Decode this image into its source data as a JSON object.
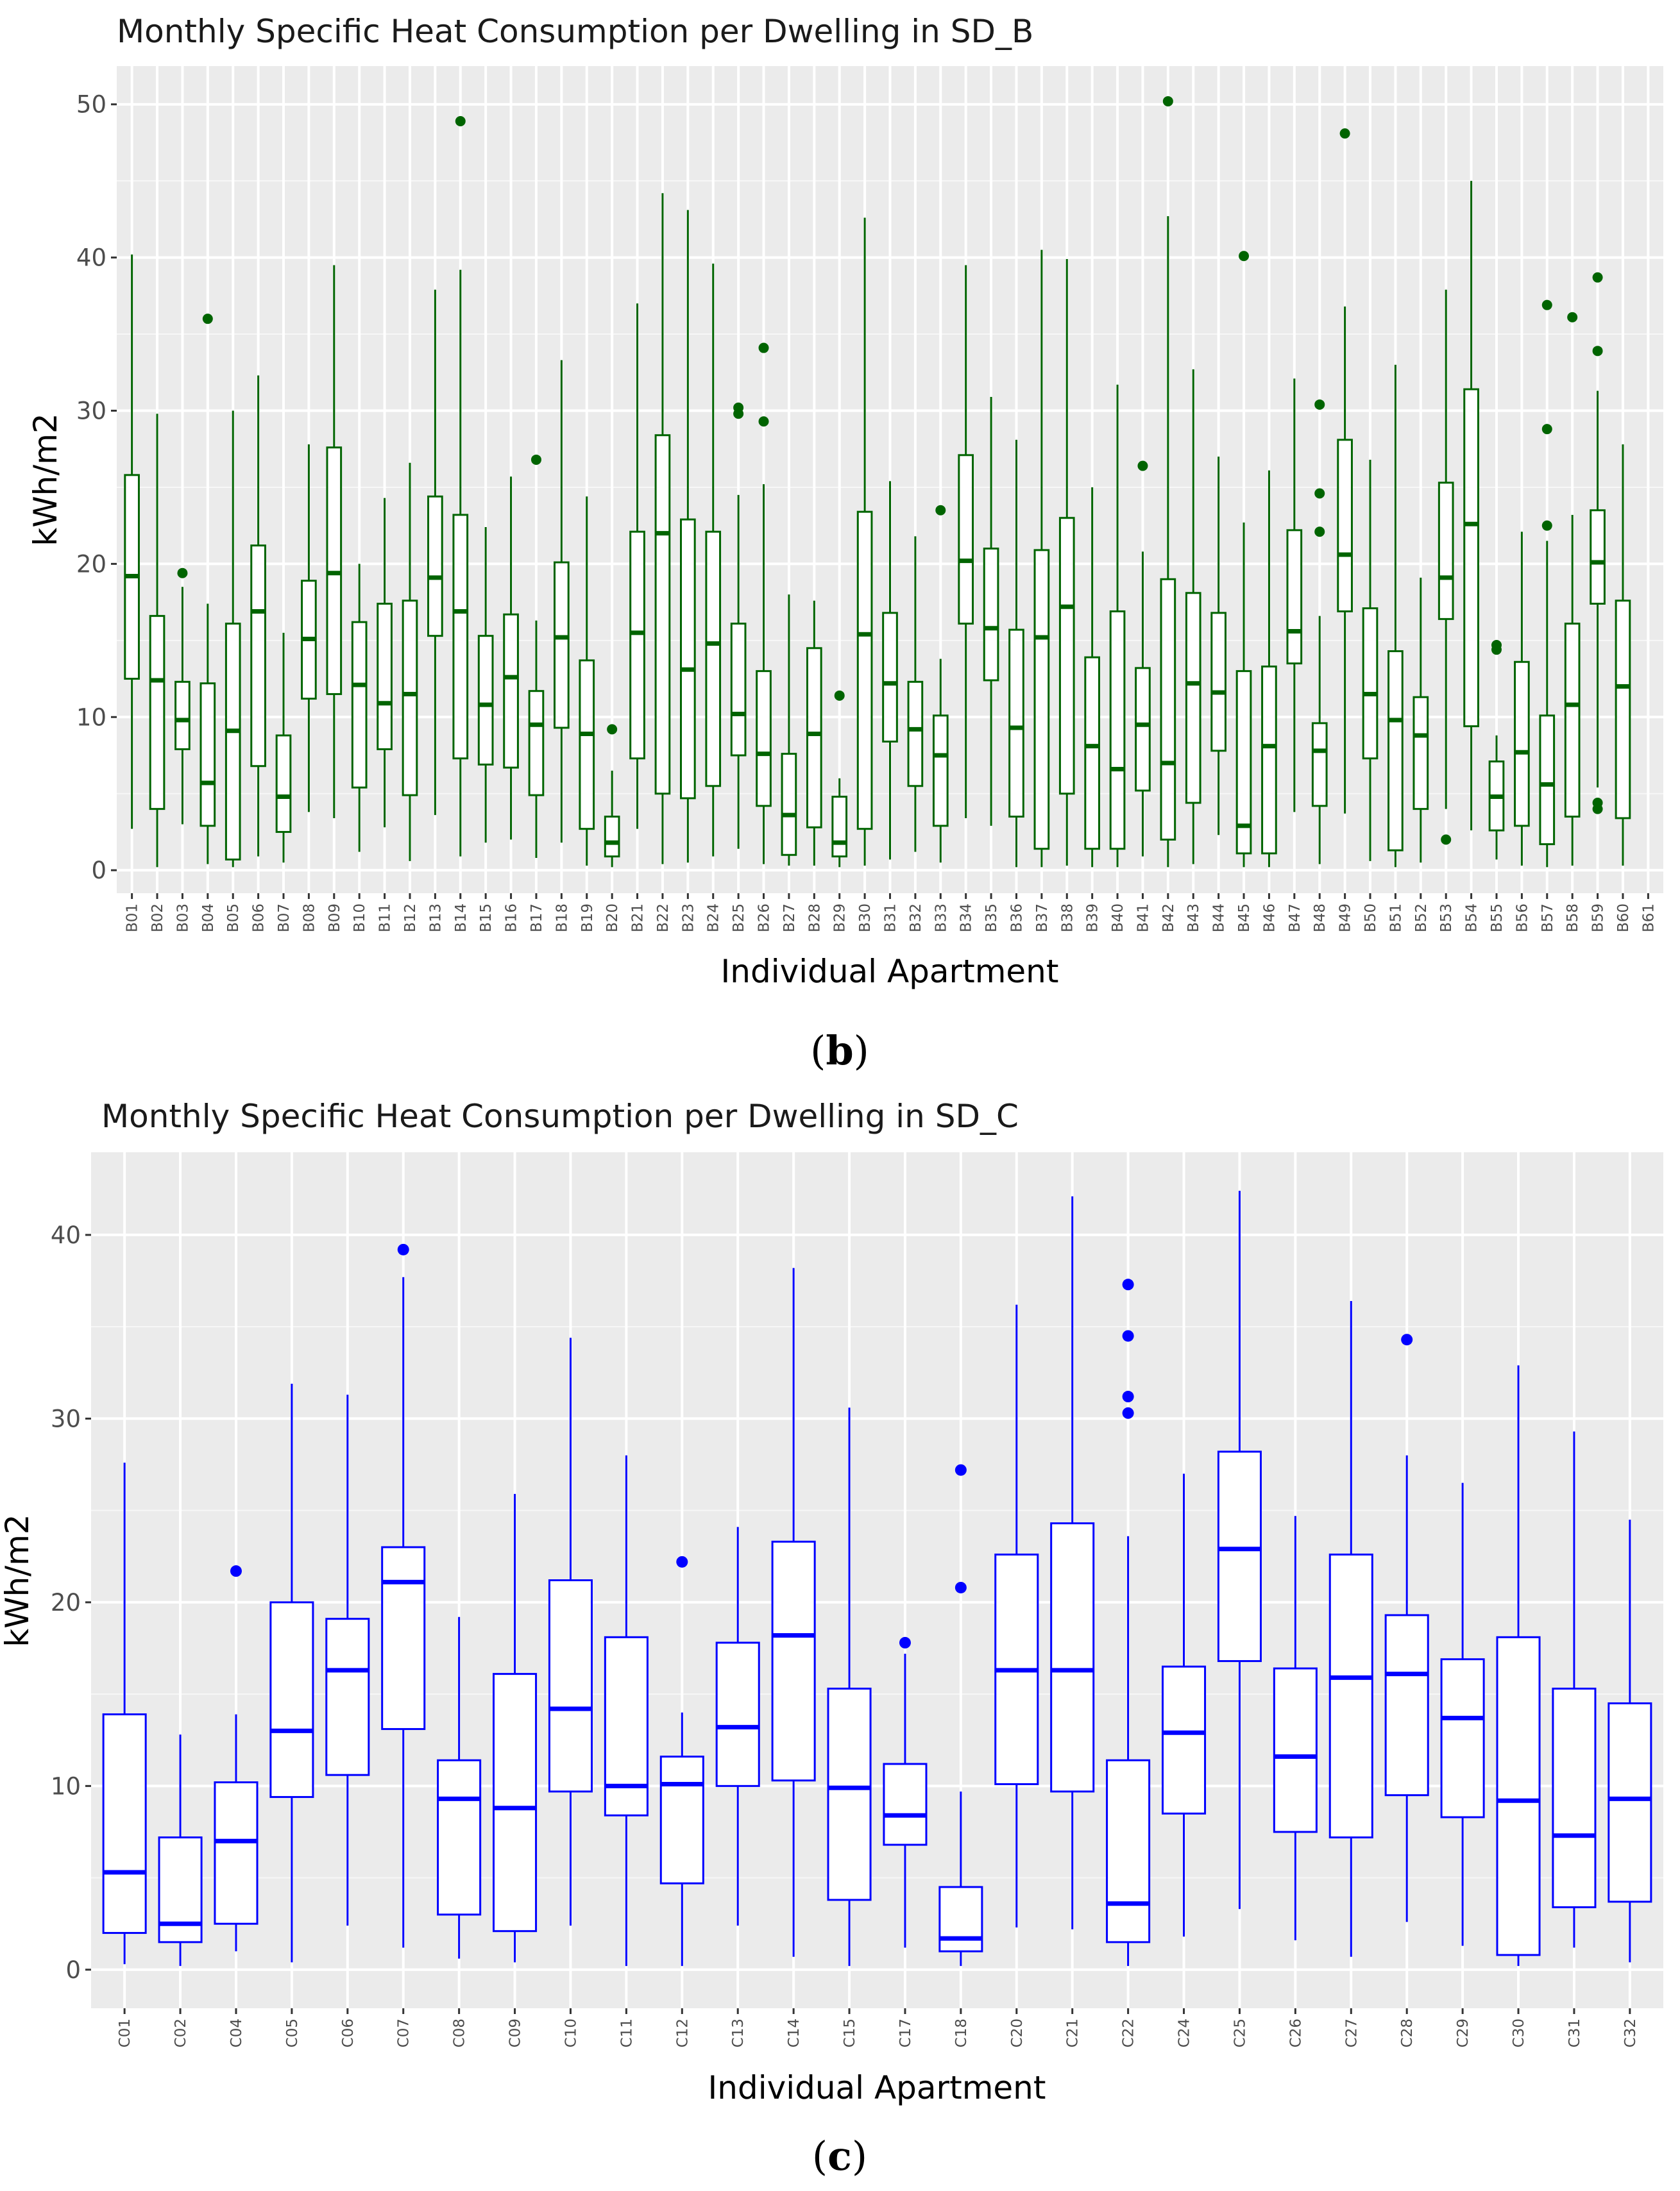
{
  "panel_labels": [
    {
      "open": "(",
      "letter": "b",
      "close": ")"
    },
    {
      "open": "(",
      "letter": "c",
      "close": ")"
    }
  ],
  "chart_data": [
    {
      "type": "boxplot",
      "title": "Monthly Specific Heat Consumption per Dwelling in SD_B",
      "xlabel": "Individual Apartment",
      "ylabel": "kWh/m2",
      "ylim": [
        -1.5,
        52.5
      ],
      "yticks": [
        0,
        10,
        20,
        30,
        40,
        50
      ],
      "color": "#006400",
      "grid": true,
      "boxes": [
        {
          "label": "B01",
          "min": 2.7,
          "q1": 12.5,
          "median": 19.2,
          "q3": 25.8,
          "max": 40.2,
          "outliers": []
        },
        {
          "label": "B02",
          "min": 0.2,
          "q1": 4.0,
          "median": 12.4,
          "q3": 16.6,
          "max": 29.8,
          "outliers": []
        },
        {
          "label": "B03",
          "min": 3.0,
          "q1": 7.9,
          "median": 9.8,
          "q3": 12.3,
          "max": 18.5,
          "outliers": [
            19.4
          ]
        },
        {
          "label": "B04",
          "min": 0.4,
          "q1": 2.9,
          "median": 5.7,
          "q3": 12.2,
          "max": 17.4,
          "outliers": [
            36.0
          ]
        },
        {
          "label": "B05",
          "min": 0.2,
          "q1": 0.7,
          "median": 9.1,
          "q3": 16.1,
          "max": 30.0,
          "outliers": []
        },
        {
          "label": "B06",
          "min": 0.9,
          "q1": 6.8,
          "median": 16.9,
          "q3": 21.2,
          "max": 32.3,
          "outliers": []
        },
        {
          "label": "B07",
          "min": 0.5,
          "q1": 2.5,
          "median": 4.8,
          "q3": 8.8,
          "max": 15.5,
          "outliers": []
        },
        {
          "label": "B08",
          "min": 3.8,
          "q1": 11.2,
          "median": 15.1,
          "q3": 18.9,
          "max": 27.8,
          "outliers": []
        },
        {
          "label": "B09",
          "min": 3.4,
          "q1": 11.5,
          "median": 19.4,
          "q3": 27.6,
          "max": 39.5,
          "outliers": []
        },
        {
          "label": "B10",
          "min": 1.2,
          "q1": 5.4,
          "median": 12.1,
          "q3": 16.2,
          "max": 20.0,
          "outliers": []
        },
        {
          "label": "B11",
          "min": 2.8,
          "q1": 7.9,
          "median": 10.9,
          "q3": 17.4,
          "max": 24.3,
          "outliers": []
        },
        {
          "label": "B12",
          "min": 0.6,
          "q1": 4.9,
          "median": 11.5,
          "q3": 17.6,
          "max": 26.6,
          "outliers": []
        },
        {
          "label": "B13",
          "min": 3.6,
          "q1": 15.3,
          "median": 19.1,
          "q3": 24.4,
          "max": 37.9,
          "outliers": []
        },
        {
          "label": "B14",
          "min": 0.9,
          "q1": 7.3,
          "median": 16.9,
          "q3": 23.2,
          "max": 39.2,
          "outliers": [
            48.9
          ]
        },
        {
          "label": "B15",
          "min": 1.8,
          "q1": 6.9,
          "median": 10.8,
          "q3": 15.3,
          "max": 22.4,
          "outliers": []
        },
        {
          "label": "B16",
          "min": 2.0,
          "q1": 6.7,
          "median": 12.6,
          "q3": 16.7,
          "max": 25.7,
          "outliers": []
        },
        {
          "label": "B17",
          "min": 0.8,
          "q1": 4.9,
          "median": 9.5,
          "q3": 11.7,
          "max": 16.3,
          "outliers": [
            26.8
          ]
        },
        {
          "label": "B18",
          "min": 1.8,
          "q1": 9.3,
          "median": 15.2,
          "q3": 20.1,
          "max": 33.3,
          "outliers": []
        },
        {
          "label": "B19",
          "min": 0.3,
          "q1": 2.7,
          "median": 8.9,
          "q3": 13.7,
          "max": 24.4,
          "outliers": []
        },
        {
          "label": "B20",
          "min": 0.2,
          "q1": 0.9,
          "median": 1.8,
          "q3": 3.5,
          "max": 6.5,
          "outliers": [
            9.2
          ]
        },
        {
          "label": "B21",
          "min": 2.7,
          "q1": 7.3,
          "median": 15.5,
          "q3": 22.1,
          "max": 37.0,
          "outliers": []
        },
        {
          "label": "B22",
          "min": 0.4,
          "q1": 5.0,
          "median": 22.0,
          "q3": 28.4,
          "max": 44.2,
          "outliers": []
        },
        {
          "label": "B23",
          "min": 0.5,
          "q1": 4.7,
          "median": 13.1,
          "q3": 22.9,
          "max": 43.1,
          "outliers": []
        },
        {
          "label": "B24",
          "min": 0.9,
          "q1": 5.5,
          "median": 14.8,
          "q3": 22.1,
          "max": 39.6,
          "outliers": []
        },
        {
          "label": "B25",
          "min": 1.4,
          "q1": 7.5,
          "median": 10.2,
          "q3": 16.1,
          "max": 24.5,
          "outliers": [
            29.8,
            30.2
          ]
        },
        {
          "label": "B26",
          "min": 0.4,
          "q1": 4.2,
          "median": 7.6,
          "q3": 13.0,
          "max": 25.2,
          "outliers": [
            29.3,
            34.1
          ]
        },
        {
          "label": "B27",
          "min": 0.3,
          "q1": 1.0,
          "median": 3.6,
          "q3": 7.6,
          "max": 18.0,
          "outliers": []
        },
        {
          "label": "B28",
          "min": 0.3,
          "q1": 2.8,
          "median": 8.9,
          "q3": 14.5,
          "max": 17.6,
          "outliers": []
        },
        {
          "label": "B29",
          "min": 0.2,
          "q1": 0.9,
          "median": 1.8,
          "q3": 4.8,
          "max": 6.0,
          "outliers": [
            11.4
          ]
        },
        {
          "label": "B30",
          "min": 0.3,
          "q1": 2.7,
          "median": 15.4,
          "q3": 23.4,
          "max": 42.6,
          "outliers": []
        },
        {
          "label": "B31",
          "min": 0.7,
          "q1": 8.4,
          "median": 12.2,
          "q3": 16.8,
          "max": 25.4,
          "outliers": []
        },
        {
          "label": "B32",
          "min": 1.2,
          "q1": 5.5,
          "median": 9.2,
          "q3": 12.3,
          "max": 21.8,
          "outliers": []
        },
        {
          "label": "B33",
          "min": 0.5,
          "q1": 2.9,
          "median": 7.5,
          "q3": 10.1,
          "max": 13.8,
          "outliers": [
            23.5
          ]
        },
        {
          "label": "B34",
          "min": 3.4,
          "q1": 16.1,
          "median": 20.2,
          "q3": 27.1,
          "max": 39.5,
          "outliers": []
        },
        {
          "label": "B35",
          "min": 2.9,
          "q1": 12.4,
          "median": 15.8,
          "q3": 21.0,
          "max": 30.9,
          "outliers": []
        },
        {
          "label": "B36",
          "min": 0.2,
          "q1": 3.5,
          "median": 9.3,
          "q3": 15.7,
          "max": 28.1,
          "outliers": []
        },
        {
          "label": "B37",
          "min": 0.2,
          "q1": 1.4,
          "median": 15.2,
          "q3": 20.9,
          "max": 40.5,
          "outliers": []
        },
        {
          "label": "B38",
          "min": 0.3,
          "q1": 5.0,
          "median": 17.2,
          "q3": 23.0,
          "max": 39.9,
          "outliers": []
        },
        {
          "label": "B39",
          "min": 0.2,
          "q1": 1.4,
          "median": 8.1,
          "q3": 13.9,
          "max": 25.0,
          "outliers": []
        },
        {
          "label": "B40",
          "min": 0.2,
          "q1": 1.4,
          "median": 6.6,
          "q3": 16.9,
          "max": 31.7,
          "outliers": []
        },
        {
          "label": "B41",
          "min": 0.9,
          "q1": 5.2,
          "median": 9.5,
          "q3": 13.2,
          "max": 20.8,
          "outliers": [
            26.4
          ]
        },
        {
          "label": "B42",
          "min": 0.2,
          "q1": 2.0,
          "median": 7.0,
          "q3": 19.0,
          "max": 42.7,
          "outliers": [
            50.2
          ]
        },
        {
          "label": "B43",
          "min": 0.4,
          "q1": 4.4,
          "median": 12.2,
          "q3": 18.1,
          "max": 32.7,
          "outliers": []
        },
        {
          "label": "B44",
          "min": 2.3,
          "q1": 7.8,
          "median": 11.6,
          "q3": 16.8,
          "max": 27.0,
          "outliers": []
        },
        {
          "label": "B45",
          "min": 0.2,
          "q1": 1.1,
          "median": 2.9,
          "q3": 13.0,
          "max": 22.7,
          "outliers": [
            40.1
          ]
        },
        {
          "label": "B46",
          "min": 0.2,
          "q1": 1.1,
          "median": 8.1,
          "q3": 13.3,
          "max": 26.1,
          "outliers": []
        },
        {
          "label": "B47",
          "min": 3.8,
          "q1": 13.5,
          "median": 15.6,
          "q3": 22.2,
          "max": 32.1,
          "outliers": []
        },
        {
          "label": "B48",
          "min": 0.4,
          "q1": 4.2,
          "median": 7.8,
          "q3": 9.6,
          "max": 16.6,
          "outliers": [
            22.1,
            24.6,
            30.4
          ]
        },
        {
          "label": "B49",
          "min": 3.7,
          "q1": 16.9,
          "median": 20.6,
          "q3": 28.1,
          "max": 36.8,
          "outliers": [
            48.1
          ]
        },
        {
          "label": "B50",
          "min": 0.6,
          "q1": 7.3,
          "median": 11.5,
          "q3": 17.1,
          "max": 26.8,
          "outliers": []
        },
        {
          "label": "B51",
          "min": 0.2,
          "q1": 1.3,
          "median": 9.8,
          "q3": 14.3,
          "max": 33.0,
          "outliers": []
        },
        {
          "label": "B52",
          "min": 0.5,
          "q1": 4.0,
          "median": 8.8,
          "q3": 11.3,
          "max": 19.1,
          "outliers": []
        },
        {
          "label": "B53",
          "min": 4.0,
          "q1": 16.4,
          "median": 19.1,
          "q3": 25.3,
          "max": 37.9,
          "outliers": [
            2.0
          ]
        },
        {
          "label": "B54",
          "min": 2.6,
          "q1": 9.4,
          "median": 22.6,
          "q3": 31.4,
          "max": 45.0,
          "outliers": []
        },
        {
          "label": "B55",
          "min": 0.7,
          "q1": 2.6,
          "median": 4.8,
          "q3": 7.1,
          "max": 8.8,
          "outliers": [
            14.4,
            14.7
          ]
        },
        {
          "label": "B56",
          "min": 0.3,
          "q1": 2.9,
          "median": 7.7,
          "q3": 13.6,
          "max": 22.1,
          "outliers": []
        },
        {
          "label": "B57",
          "min": 0.2,
          "q1": 1.7,
          "median": 5.6,
          "q3": 10.1,
          "max": 21.5,
          "outliers": [
            22.5,
            28.8,
            36.9
          ]
        },
        {
          "label": "B58",
          "min": 0.3,
          "q1": 3.5,
          "median": 10.8,
          "q3": 16.1,
          "max": 23.2,
          "outliers": [
            36.1
          ]
        },
        {
          "label": "B59",
          "min": 5.4,
          "q1": 17.4,
          "median": 20.1,
          "q3": 23.5,
          "max": 31.3,
          "outliers": [
            4.0,
            4.4,
            33.9,
            38.7
          ]
        },
        {
          "label": "B60",
          "min": 0.3,
          "q1": 3.4,
          "median": 12.0,
          "q3": 17.6,
          "max": 27.8,
          "outliers": []
        },
        {
          "label": "B61",
          "min": null,
          "q1": null,
          "median": null,
          "q3": null,
          "max": null,
          "outliers": []
        }
      ]
    },
    {
      "type": "boxplot",
      "title": "Monthly Specific Heat Consumption per Dwelling in SD_C",
      "xlabel": "Individual Apartment",
      "ylabel": "kWh/m2",
      "ylim": [
        -2.1,
        44.5
      ],
      "yticks": [
        0,
        10,
        20,
        30,
        40
      ],
      "color": "#0000ff",
      "grid": true,
      "boxes": [
        {
          "label": "C01",
          "min": 0.3,
          "q1": 2.0,
          "median": 5.3,
          "q3": 13.9,
          "max": 27.6,
          "outliers": []
        },
        {
          "label": "C02",
          "min": 0.2,
          "q1": 1.5,
          "median": 2.5,
          "q3": 7.2,
          "max": 12.8,
          "outliers": []
        },
        {
          "label": "C04",
          "min": 1.0,
          "q1": 2.5,
          "median": 7.0,
          "q3": 10.2,
          "max": 13.9,
          "outliers": [
            21.7
          ]
        },
        {
          "label": "C05",
          "min": 0.4,
          "q1": 9.4,
          "median": 13.0,
          "q3": 20.0,
          "max": 31.9,
          "outliers": []
        },
        {
          "label": "C06",
          "min": 2.4,
          "q1": 10.6,
          "median": 16.3,
          "q3": 19.1,
          "max": 31.3,
          "outliers": []
        },
        {
          "label": "C07",
          "min": 1.2,
          "q1": 13.1,
          "median": 21.1,
          "q3": 23.0,
          "max": 37.7,
          "outliers": [
            39.2
          ]
        },
        {
          "label": "C08",
          "min": 0.6,
          "q1": 3.0,
          "median": 9.3,
          "q3": 11.4,
          "max": 19.2,
          "outliers": []
        },
        {
          "label": "C09",
          "min": 0.4,
          "q1": 2.1,
          "median": 8.8,
          "q3": 16.1,
          "max": 25.9,
          "outliers": []
        },
        {
          "label": "C10",
          "min": 2.4,
          "q1": 9.7,
          "median": 14.2,
          "q3": 21.2,
          "max": 34.4,
          "outliers": []
        },
        {
          "label": "C11",
          "min": 0.2,
          "q1": 8.4,
          "median": 10.0,
          "q3": 18.1,
          "max": 28.0,
          "outliers": []
        },
        {
          "label": "C12",
          "min": 0.2,
          "q1": 4.7,
          "median": 10.1,
          "q3": 11.6,
          "max": 14.0,
          "outliers": [
            22.2
          ]
        },
        {
          "label": "C13",
          "min": 2.4,
          "q1": 10.0,
          "median": 13.2,
          "q3": 17.8,
          "max": 24.1,
          "outliers": []
        },
        {
          "label": "C14",
          "min": 0.7,
          "q1": 10.3,
          "median": 18.2,
          "q3": 23.3,
          "max": 38.2,
          "outliers": []
        },
        {
          "label": "C15",
          "min": 0.2,
          "q1": 3.8,
          "median": 9.9,
          "q3": 15.3,
          "max": 30.6,
          "outliers": []
        },
        {
          "label": "C17",
          "min": 1.2,
          "q1": 6.8,
          "median": 8.4,
          "q3": 11.2,
          "max": 17.2,
          "outliers": [
            17.8
          ]
        },
        {
          "label": "C18",
          "min": 0.2,
          "q1": 1.0,
          "median": 1.7,
          "q3": 4.5,
          "max": 9.7,
          "outliers": [
            20.8,
            27.2
          ]
        },
        {
          "label": "C20",
          "min": 2.3,
          "q1": 10.1,
          "median": 16.3,
          "q3": 22.6,
          "max": 36.2,
          "outliers": []
        },
        {
          "label": "C21",
          "min": 2.2,
          "q1": 9.7,
          "median": 16.3,
          "q3": 24.3,
          "max": 42.1,
          "outliers": []
        },
        {
          "label": "C22",
          "min": 0.2,
          "q1": 1.5,
          "median": 3.6,
          "q3": 11.4,
          "max": 23.6,
          "outliers": [
            30.3,
            31.2,
            34.5,
            37.3
          ]
        },
        {
          "label": "C24",
          "min": 1.8,
          "q1": 8.5,
          "median": 12.9,
          "q3": 16.5,
          "max": 27.0,
          "outliers": []
        },
        {
          "label": "C25",
          "min": 3.3,
          "q1": 16.8,
          "median": 22.9,
          "q3": 28.2,
          "max": 42.4,
          "outliers": []
        },
        {
          "label": "C26",
          "min": 1.6,
          "q1": 7.5,
          "median": 11.6,
          "q3": 16.4,
          "max": 24.7,
          "outliers": []
        },
        {
          "label": "C27",
          "min": 0.7,
          "q1": 7.2,
          "median": 15.9,
          "q3": 22.6,
          "max": 36.4,
          "outliers": []
        },
        {
          "label": "C28",
          "min": 2.6,
          "q1": 9.5,
          "median": 16.1,
          "q3": 19.3,
          "max": 28.0,
          "outliers": [
            34.3
          ]
        },
        {
          "label": "C29",
          "min": 1.3,
          "q1": 8.3,
          "median": 13.7,
          "q3": 16.9,
          "max": 26.5,
          "outliers": []
        },
        {
          "label": "C30",
          "min": 0.2,
          "q1": 0.8,
          "median": 9.2,
          "q3": 18.1,
          "max": 32.9,
          "outliers": []
        },
        {
          "label": "C31",
          "min": 1.2,
          "q1": 3.4,
          "median": 7.3,
          "q3": 15.3,
          "max": 29.3,
          "outliers": []
        },
        {
          "label": "C32",
          "min": 0.4,
          "q1": 3.7,
          "median": 9.3,
          "q3": 14.5,
          "max": 24.5,
          "outliers": []
        }
      ]
    }
  ]
}
